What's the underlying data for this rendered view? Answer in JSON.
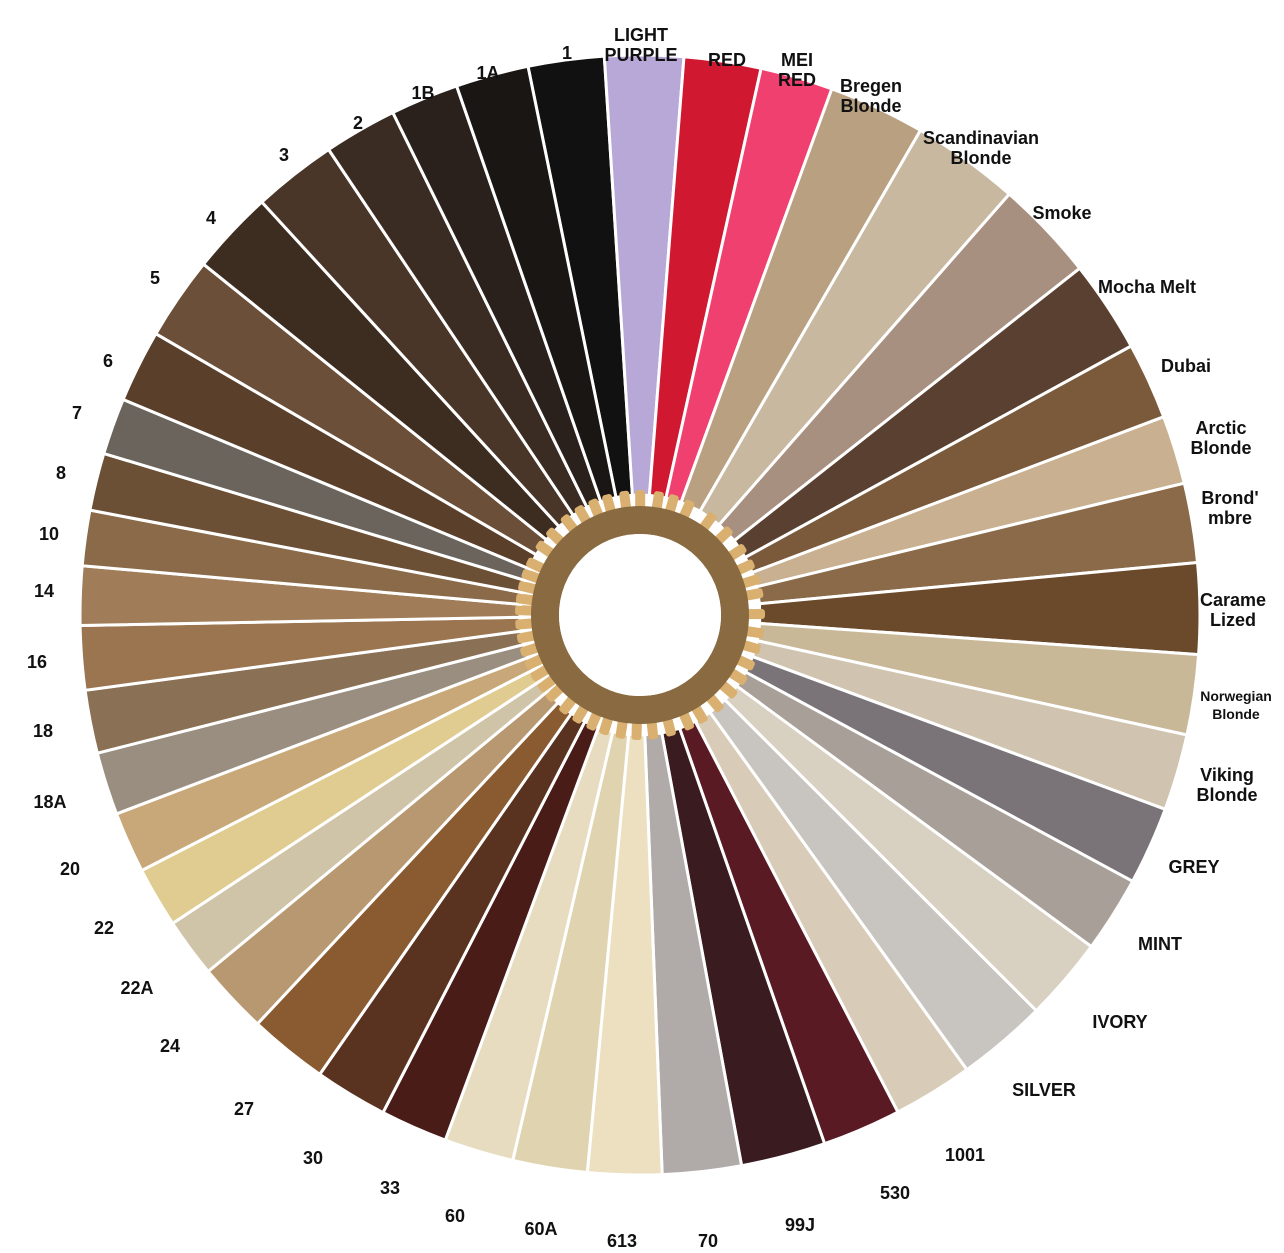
{
  "swatches": [
    {
      "label": "1",
      "color": "#121111"
    },
    {
      "label": "LIGHT\nPURPLE",
      "color": "#b8a8d8"
    },
    {
      "label": "RED",
      "color": "#d01830"
    },
    {
      "label": "MEI\nRED",
      "color": "#f04070"
    },
    {
      "label": "Bregen\nBlonde",
      "color": "#b8a080"
    },
    {
      "label": "Scandinavian\nBlonde",
      "color": "#c8b8a0"
    },
    {
      "label": "Smoke",
      "color": "#a89080"
    },
    {
      "label": "Mocha Melt",
      "color": "#5a4030"
    },
    {
      "label": "Dubai",
      "color": "#7a5a3a"
    },
    {
      "label": "Arctic\nBlonde",
      "color": "#c8b090"
    },
    {
      "label": "Brond'\nmbre",
      "color": "#8a6a48"
    },
    {
      "label": "Carame\nLized",
      "color": "#6a4a2a"
    },
    {
      "label": "Norwegian\nBlonde",
      "color": "#c8b898"
    },
    {
      "label": "Viking\nBlonde",
      "color": "#d0c4b0"
    },
    {
      "label": "GREY",
      "color": "#7a7478"
    },
    {
      "label": "MINT",
      "color": "#a8a098"
    },
    {
      "label": "IVORY",
      "color": "#d8d0c0"
    },
    {
      "label": "SILVER",
      "color": "#c8c4c0"
    },
    {
      "label": "1001",
      "color": "#d8ccb8"
    },
    {
      "label": "530",
      "color": "#5a1a24"
    },
    {
      "label": "99J",
      "color": "#3a1c20"
    },
    {
      "label": "70",
      "color": "#b0aaa8"
    },
    {
      "label": "613",
      "color": "#ece0c0"
    },
    {
      "label": "60A",
      "color": "#e0d4b0"
    },
    {
      "label": "60",
      "color": "#e8dcc0"
    },
    {
      "label": "33",
      "color": "#4a1c18"
    },
    {
      "label": "30",
      "color": "#5a3220"
    },
    {
      "label": "27",
      "color": "#8a5a30"
    },
    {
      "label": "24",
      "color": "#b89870"
    },
    {
      "label": "22A",
      "color": "#d0c4a8"
    },
    {
      "label": "22",
      "color": "#e0cc90"
    },
    {
      "label": "20",
      "color": "#c8a878"
    },
    {
      "label": "18A",
      "color": "#9a8e80"
    },
    {
      "label": "18",
      "color": "#8a7055"
    },
    {
      "label": "16",
      "color": "#9a7550"
    },
    {
      "label": "14",
      "color": "#a07d58"
    },
    {
      "label": "10",
      "color": "#8a6a48"
    },
    {
      "label": "8",
      "color": "#6b5036"
    },
    {
      "label": "7",
      "color": "#6a645c"
    },
    {
      "label": "6",
      "color": "#5a3f2a"
    },
    {
      "label": "5",
      "color": "#6b4f38"
    },
    {
      "label": "4",
      "color": "#3d2c20"
    },
    {
      "label": "3",
      "color": "#4a3628"
    },
    {
      "label": "2",
      "color": "#3a2c22"
    },
    {
      "label": "1B",
      "color": "#2a211c"
    },
    {
      "label": "1A",
      "color": "#1a1614"
    }
  ],
  "ring_color": "#d9b070"
}
